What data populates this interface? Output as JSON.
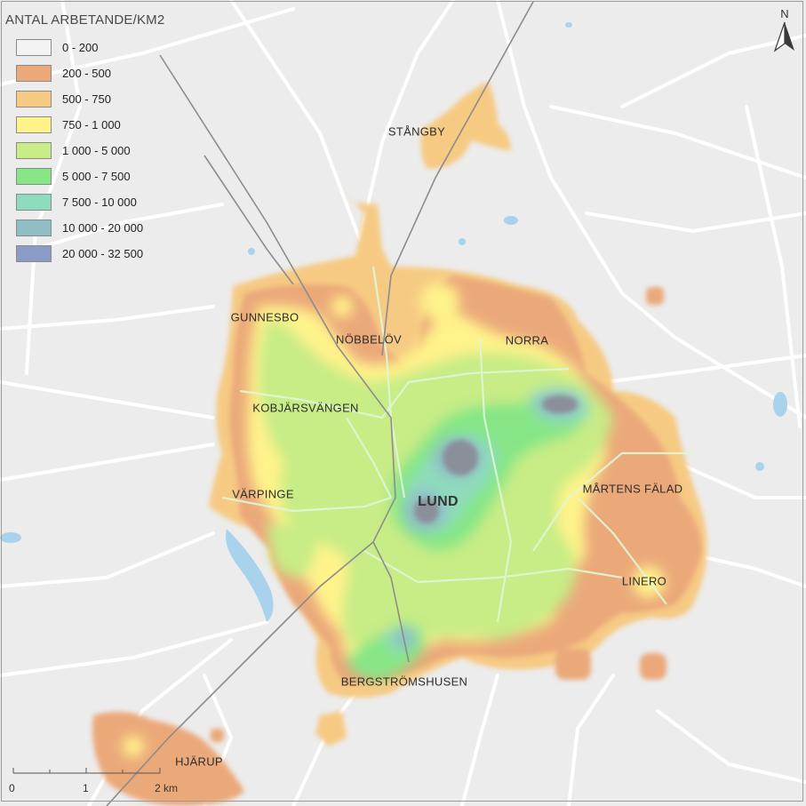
{
  "legend": {
    "title": "ANTAL ARBETANDE/KM2",
    "items": [
      {
        "label": "0 - 200",
        "color": "#f3f3f3"
      },
      {
        "label": "200 - 500",
        "color": "#eba97a"
      },
      {
        "label": "500 - 750",
        "color": "#f6ca83"
      },
      {
        "label": "750 - 1 000",
        "color": "#fff38a"
      },
      {
        "label": "1 000 - 5 000",
        "color": "#c8ec86"
      },
      {
        "label": "5 000 - 7 500",
        "color": "#86e686"
      },
      {
        "label": "7 500 - 10 000",
        "color": "#8fdbbd"
      },
      {
        "label": "10 000 - 20 000",
        "color": "#8fbfc4"
      },
      {
        "label": "20 000 - 32 500",
        "color": "#8a9bc5"
      }
    ]
  },
  "places": {
    "stangby": "STÅNGBY",
    "gunnesbo": "GUNNESBO",
    "nobbelov": "NÖBBELÖV",
    "norra": "NORRA",
    "kobjarsvangen": "KOBJÄRSVÄNGEN",
    "varpinge": "VÄRPINGE",
    "lund": "LUND",
    "martens_falad": "MÅRTENS FÄLAD",
    "linero": "LINERO",
    "bergstromshusen": "BERGSTRÖMSHUSEN",
    "hjarup": "HJÄRUP"
  },
  "north_arrow": {
    "letter": "N",
    "icon": "north-arrow-icon"
  },
  "scale": {
    "labels": [
      "0",
      "1",
      "2 km"
    ]
  }
}
